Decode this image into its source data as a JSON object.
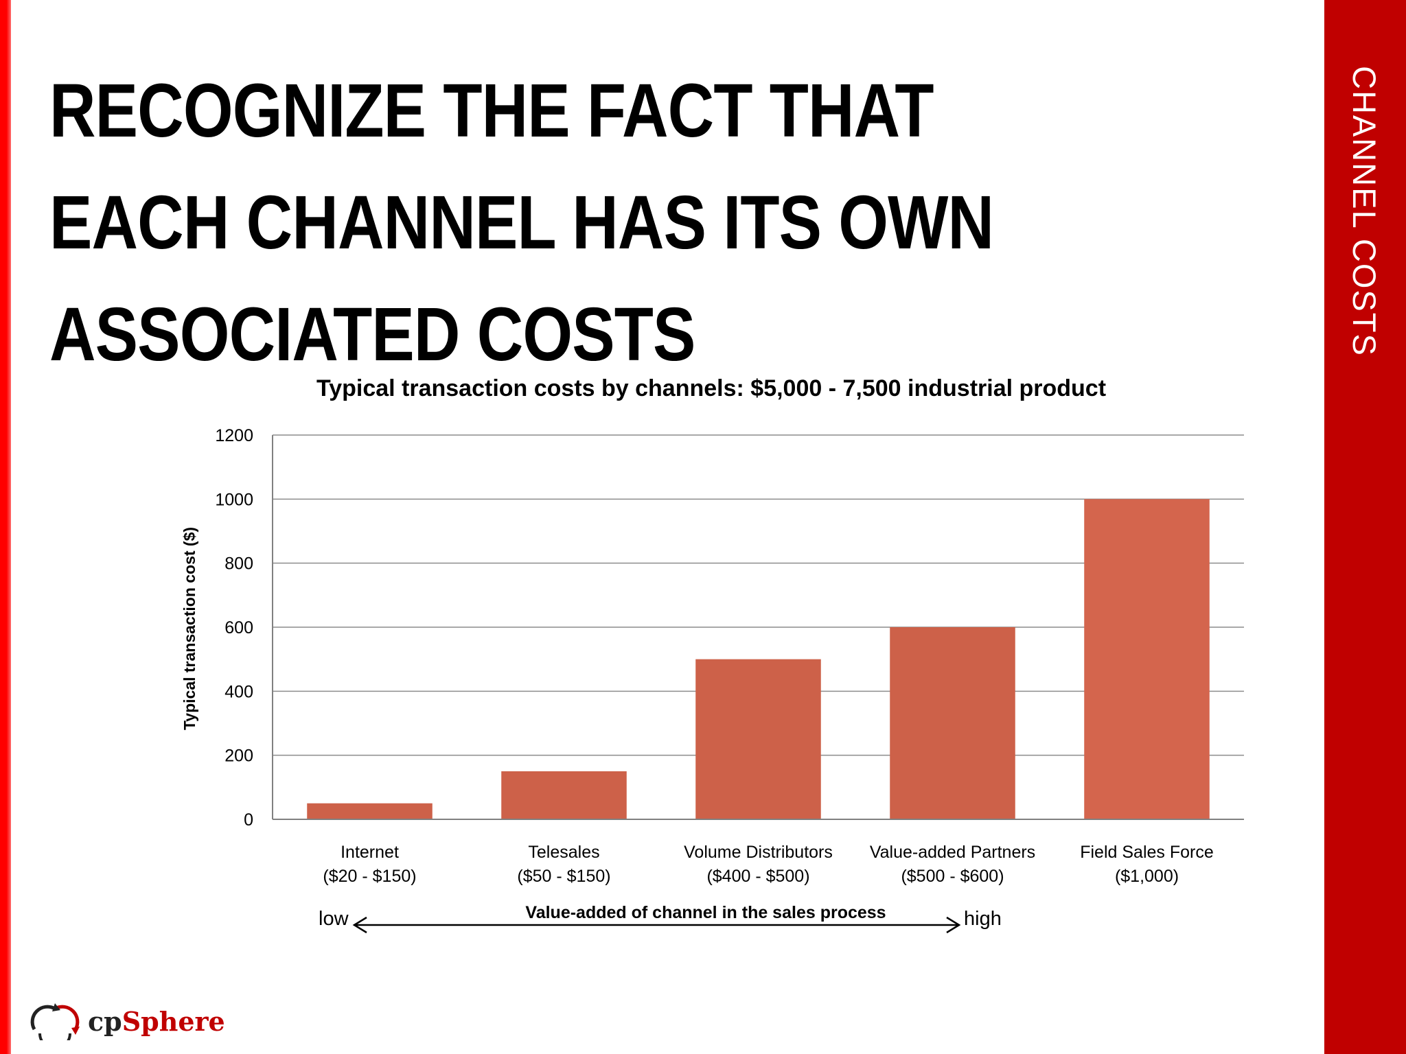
{
  "slide": {
    "title": "RECOGNIZE THE FACT THAT EACH CHANNEL HAS ITS OWN ASSOCIATED COSTS",
    "section_label": "CHANNEL COSTS",
    "accent_color": "#c00000",
    "stripe_color": "#ff0000"
  },
  "logo": {
    "prefix": "cp",
    "accent": "Sphere",
    "icon": "cpsphere-arrows-icon"
  },
  "chart_data": {
    "type": "bar",
    "title": "Typical transaction costs by channels: $5,000 - 7,500 industrial product",
    "ylabel": "Typical transaction cost ($)",
    "xlabel": "Value-added of channel in the sales process",
    "axis_arrow": {
      "low": "low",
      "high": "high"
    },
    "categories": [
      [
        "Internet",
        "($20 - $150)"
      ],
      [
        "Telesales",
        "($50 - $150)"
      ],
      [
        "Volume Distributors",
        "($400 - $500)"
      ],
      [
        "Value-added Partners",
        "($500 - $600)"
      ],
      [
        "Field Sales Force",
        "($1,000)"
      ]
    ],
    "values": [
      50,
      150,
      500,
      600,
      1000
    ],
    "ylim": [
      0,
      1200
    ],
    "yticks": [
      0,
      200,
      400,
      600,
      800,
      1000,
      1200
    ],
    "grid": true,
    "bar_colors": [
      "#cd6149",
      "#cd6149",
      "#cd6149",
      "#cd6149",
      "#d4654d"
    ]
  }
}
